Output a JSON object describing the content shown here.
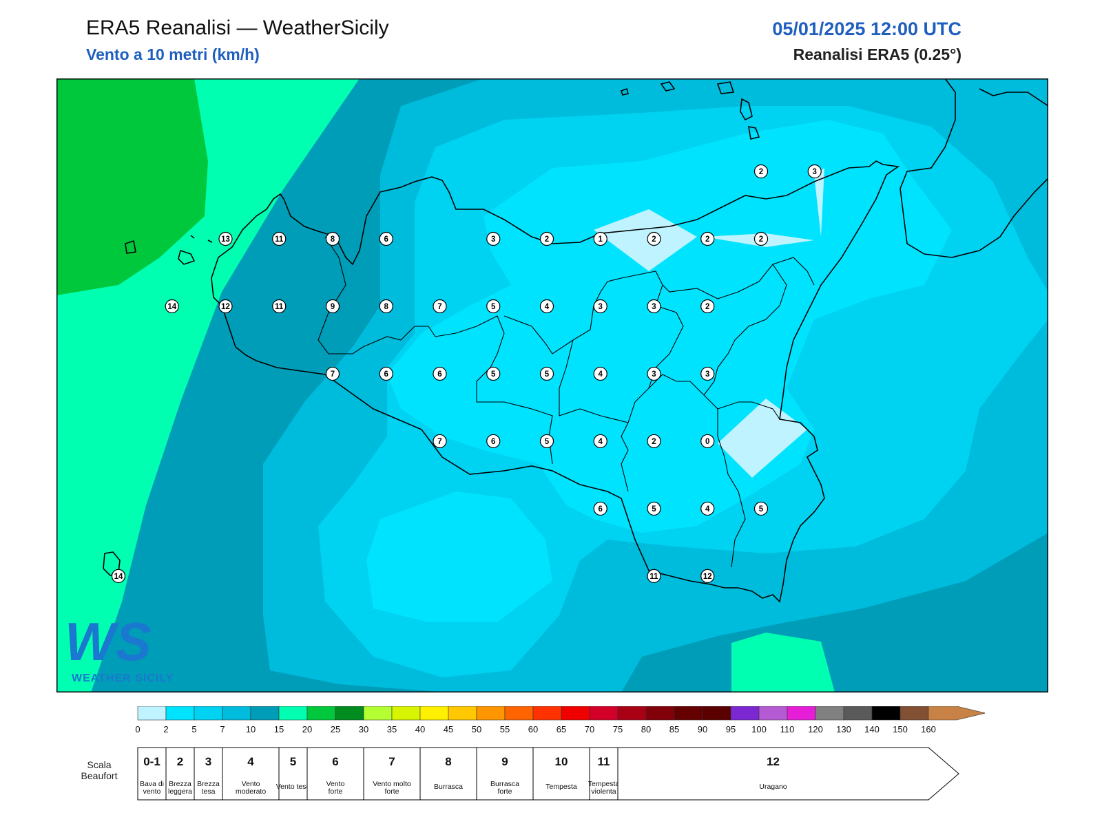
{
  "header": {
    "title": "ERA5 Reanalisi — WeatherSicily",
    "subtitle": "Vento a 10 metri (km/h)",
    "datetime": "05/01/2025 12:00 UTC",
    "source": "Reanalisi ERA5 (0.25°)"
  },
  "logo": {
    "mark": "WS",
    "text": "WEATHER SICILY"
  },
  "wind_labels": [
    {
      "v": "13",
      "lon": 12.5,
      "lat": 38.2
    },
    {
      "v": "11",
      "lon": 13.0,
      "lat": 38.2
    },
    {
      "v": "8",
      "lon": 13.5,
      "lat": 38.2
    },
    {
      "v": "6",
      "lon": 14.0,
      "lat": 38.2
    },
    {
      "v": "3",
      "lon": 15.0,
      "lat": 38.2
    },
    {
      "v": "2",
      "lon": 15.5,
      "lat": 38.2
    },
    {
      "v": "1",
      "lon": 16.0,
      "lat": 38.2
    },
    {
      "v": "2",
      "lon": 16.5,
      "lat": 38.2
    },
    {
      "v": "2",
      "lon": 17.0,
      "lat": 38.2
    },
    {
      "v": "2",
      "lon": 17.5,
      "lat": 38.2
    },
    {
      "v": "2",
      "lon": 17.5,
      "lat": 38.8
    },
    {
      "v": "3",
      "lon": 18.0,
      "lat": 38.8
    },
    {
      "v": "14",
      "lon": 12.0,
      "lat": 37.6
    },
    {
      "v": "12",
      "lon": 12.5,
      "lat": 37.6
    },
    {
      "v": "11",
      "lon": 13.0,
      "lat": 37.6
    },
    {
      "v": "9",
      "lon": 13.5,
      "lat": 37.6
    },
    {
      "v": "8",
      "lon": 14.0,
      "lat": 37.6
    },
    {
      "v": "7",
      "lon": 14.5,
      "lat": 37.6
    },
    {
      "v": "5",
      "lon": 15.0,
      "lat": 37.6
    },
    {
      "v": "4",
      "lon": 15.5,
      "lat": 37.6
    },
    {
      "v": "3",
      "lon": 16.0,
      "lat": 37.6
    },
    {
      "v": "3",
      "lon": 16.5,
      "lat": 37.6
    },
    {
      "v": "2",
      "lon": 17.0,
      "lat": 37.6
    },
    {
      "v": "7",
      "lon": 13.5,
      "lat": 37.0
    },
    {
      "v": "6",
      "lon": 14.0,
      "lat": 37.0
    },
    {
      "v": "6",
      "lon": 14.5,
      "lat": 37.0
    },
    {
      "v": "5",
      "lon": 15.0,
      "lat": 37.0
    },
    {
      "v": "5",
      "lon": 15.5,
      "lat": 37.0
    },
    {
      "v": "4",
      "lon": 16.0,
      "lat": 37.0
    },
    {
      "v": "3",
      "lon": 16.5,
      "lat": 37.0
    },
    {
      "v": "3",
      "lon": 17.0,
      "lat": 37.0
    },
    {
      "v": "7",
      "lon": 14.5,
      "lat": 36.4
    },
    {
      "v": "6",
      "lon": 15.0,
      "lat": 36.4
    },
    {
      "v": "5",
      "lon": 15.5,
      "lat": 36.4
    },
    {
      "v": "4",
      "lon": 16.0,
      "lat": 36.4
    },
    {
      "v": "2",
      "lon": 16.5,
      "lat": 36.4
    },
    {
      "v": "0",
      "lon": 17.0,
      "lat": 36.4
    },
    {
      "v": "6",
      "lon": 16.0,
      "lat": 35.8
    },
    {
      "v": "5",
      "lon": 16.5,
      "lat": 35.8
    },
    {
      "v": "4",
      "lon": 17.0,
      "lat": 35.8
    },
    {
      "v": "5",
      "lon": 17.5,
      "lat": 35.8
    },
    {
      "v": "11",
      "lon": 16.5,
      "lat": 35.2
    },
    {
      "v": "12",
      "lon": 17.0,
      "lat": 35.2
    },
    {
      "v": "14",
      "lon": 11.5,
      "lat": 35.2
    }
  ],
  "colorbar": {
    "ticks": [
      "0",
      "2",
      "5",
      "7",
      "10",
      "15",
      "20",
      "25",
      "30",
      "35",
      "40",
      "45",
      "50",
      "55",
      "60",
      "65",
      "70",
      "75",
      "80",
      "85",
      "90",
      "95",
      "100",
      "110",
      "120",
      "130",
      "140",
      "150",
      "160"
    ],
    "colors": [
      "#bff3ff",
      "#00e3ff",
      "#00d2f2",
      "#00bcdc",
      "#009db8",
      "#00ffb0",
      "#00c83c",
      "#008c1e",
      "#b4ff32",
      "#d7f500",
      "#fff000",
      "#ffc800",
      "#ff9600",
      "#ff6400",
      "#ff3200",
      "#f00000",
      "#d20028",
      "#aa0014",
      "#82000a",
      "#640000",
      "#5a0000",
      "#7b28d2",
      "#b45ad2",
      "#e61ed7",
      "#808080",
      "#5a5a5a",
      "#000000",
      "#825032",
      "#c88246"
    ]
  },
  "beaufort": {
    "label_line1": "Scala",
    "label_line2": "Beaufort",
    "classes": [
      {
        "num": "0-1",
        "l1": "Bava di",
        "l2": "vento"
      },
      {
        "num": "2",
        "l1": "Brezza",
        "l2": "leggera"
      },
      {
        "num": "3",
        "l1": "Brezza",
        "l2": "tesa"
      },
      {
        "num": "4",
        "l1": "Vento",
        "l2": "moderato"
      },
      {
        "num": "5",
        "l1": "Vento teso",
        "l2": ""
      },
      {
        "num": "6",
        "l1": "Vento",
        "l2": "forte"
      },
      {
        "num": "7",
        "l1": "Vento molto",
        "l2": "forte"
      },
      {
        "num": "8",
        "l1": "Burrasca",
        "l2": ""
      },
      {
        "num": "9",
        "l1": "Burrasca",
        "l2": "forte"
      },
      {
        "num": "10",
        "l1": "Tempesta",
        "l2": ""
      },
      {
        "num": "11",
        "l1": "Tempesta",
        "l2": "violenta"
      },
      {
        "num": "12",
        "l1": "Uragano",
        "l2": ""
      }
    ]
  }
}
